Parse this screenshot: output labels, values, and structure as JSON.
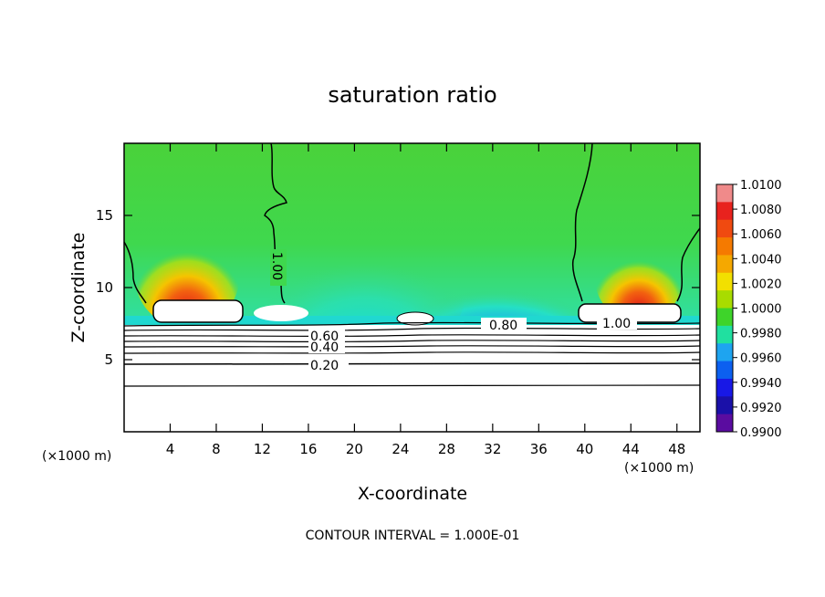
{
  "chart_data": {
    "type": "heatmap",
    "title": "saturation ratio",
    "xlabel": "X-coordinate",
    "ylabel": "Z-coordinate",
    "x_unit_left": "(×1000 m)",
    "x_unit_right": "(×1000 m)",
    "xlim": [
      0,
      50
    ],
    "ylim": [
      0,
      20
    ],
    "x_ticks": [
      4,
      8,
      12,
      16,
      20,
      24,
      28,
      32,
      36,
      40,
      44,
      48
    ],
    "y_ticks": [
      5,
      10,
      15
    ],
    "colorbar": {
      "labels": [
        "1.0100",
        "1.0080",
        "1.0060",
        "1.0040",
        "1.0020",
        "1.0000",
        "0.9980",
        "0.9960",
        "0.9940",
        "0.9920",
        "0.9900"
      ],
      "colors": [
        "#f08a8a",
        "#e8221e",
        "#f04a10",
        "#f57a00",
        "#f5a800",
        "#f2e000",
        "#a8dc00",
        "#3ed42a",
        "#20e0a0",
        "#1ea4f0",
        "#0c60f0",
        "#1818e6",
        "#1a10a8",
        "#5a0ca0"
      ]
    },
    "contour_labels": [
      "1.00",
      "0.80",
      "1.00",
      "0.60",
      "0.40",
      "0.20"
    ],
    "contour_interval": "CONTOUR INTERVAL = 1.000E-01"
  }
}
